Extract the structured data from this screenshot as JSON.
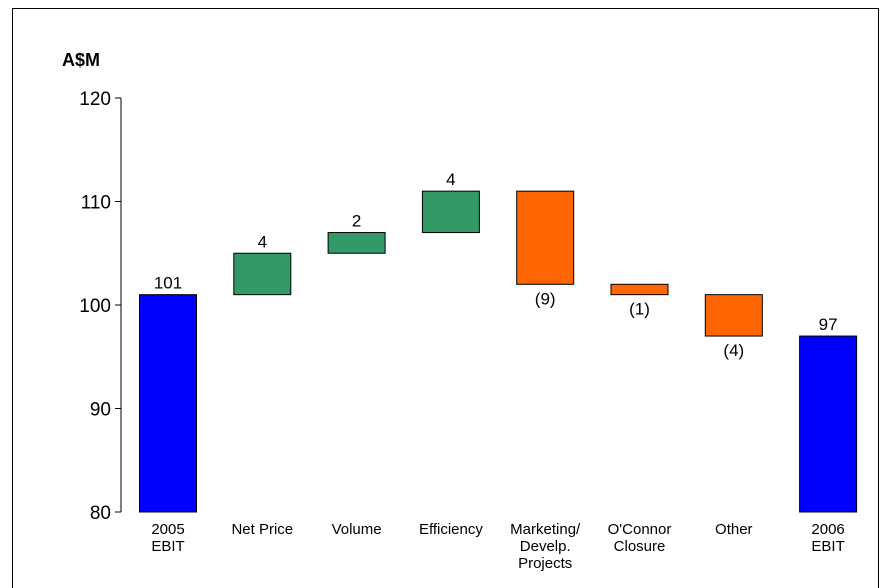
{
  "chart_data": {
    "type": "bar",
    "subtype": "waterfall",
    "title": "",
    "ylabel": "A$M",
    "xlabel": "",
    "ylim": [
      80,
      120
    ],
    "yticks": [
      80,
      90,
      100,
      110,
      120
    ],
    "grid": false,
    "legend": "none",
    "categories": [
      [
        "2005",
        "EBIT"
      ],
      [
        "Net Price"
      ],
      [
        "Volume"
      ],
      [
        "Efficiency"
      ],
      [
        "Marketing/",
        "Develp.",
        "Projects"
      ],
      [
        "O'Connor",
        "Closure"
      ],
      [
        "Other"
      ],
      [
        "2006",
        "EBIT"
      ]
    ],
    "bars": [
      {
        "start": 80,
        "end": 101,
        "kind": "total",
        "label": "101",
        "label_pos": "above"
      },
      {
        "start": 101,
        "end": 105,
        "kind": "increase",
        "label": "4",
        "label_pos": "above"
      },
      {
        "start": 105,
        "end": 107,
        "kind": "increase",
        "label": "2",
        "label_pos": "above"
      },
      {
        "start": 107,
        "end": 111,
        "kind": "increase",
        "label": "4",
        "label_pos": "above"
      },
      {
        "start": 111,
        "end": 102,
        "kind": "decrease",
        "label": "(9)",
        "label_pos": "below"
      },
      {
        "start": 102,
        "end": 101,
        "kind": "decrease",
        "label": "(1)",
        "label_pos": "below"
      },
      {
        "start": 101,
        "end": 97,
        "kind": "decrease",
        "label": "(4)",
        "label_pos": "below"
      },
      {
        "start": 80,
        "end": 97,
        "kind": "total",
        "label": "97",
        "label_pos": "above"
      }
    ],
    "colors": {
      "total": "#0000ff",
      "increase": "#339966",
      "decrease": "#ff6600"
    }
  }
}
